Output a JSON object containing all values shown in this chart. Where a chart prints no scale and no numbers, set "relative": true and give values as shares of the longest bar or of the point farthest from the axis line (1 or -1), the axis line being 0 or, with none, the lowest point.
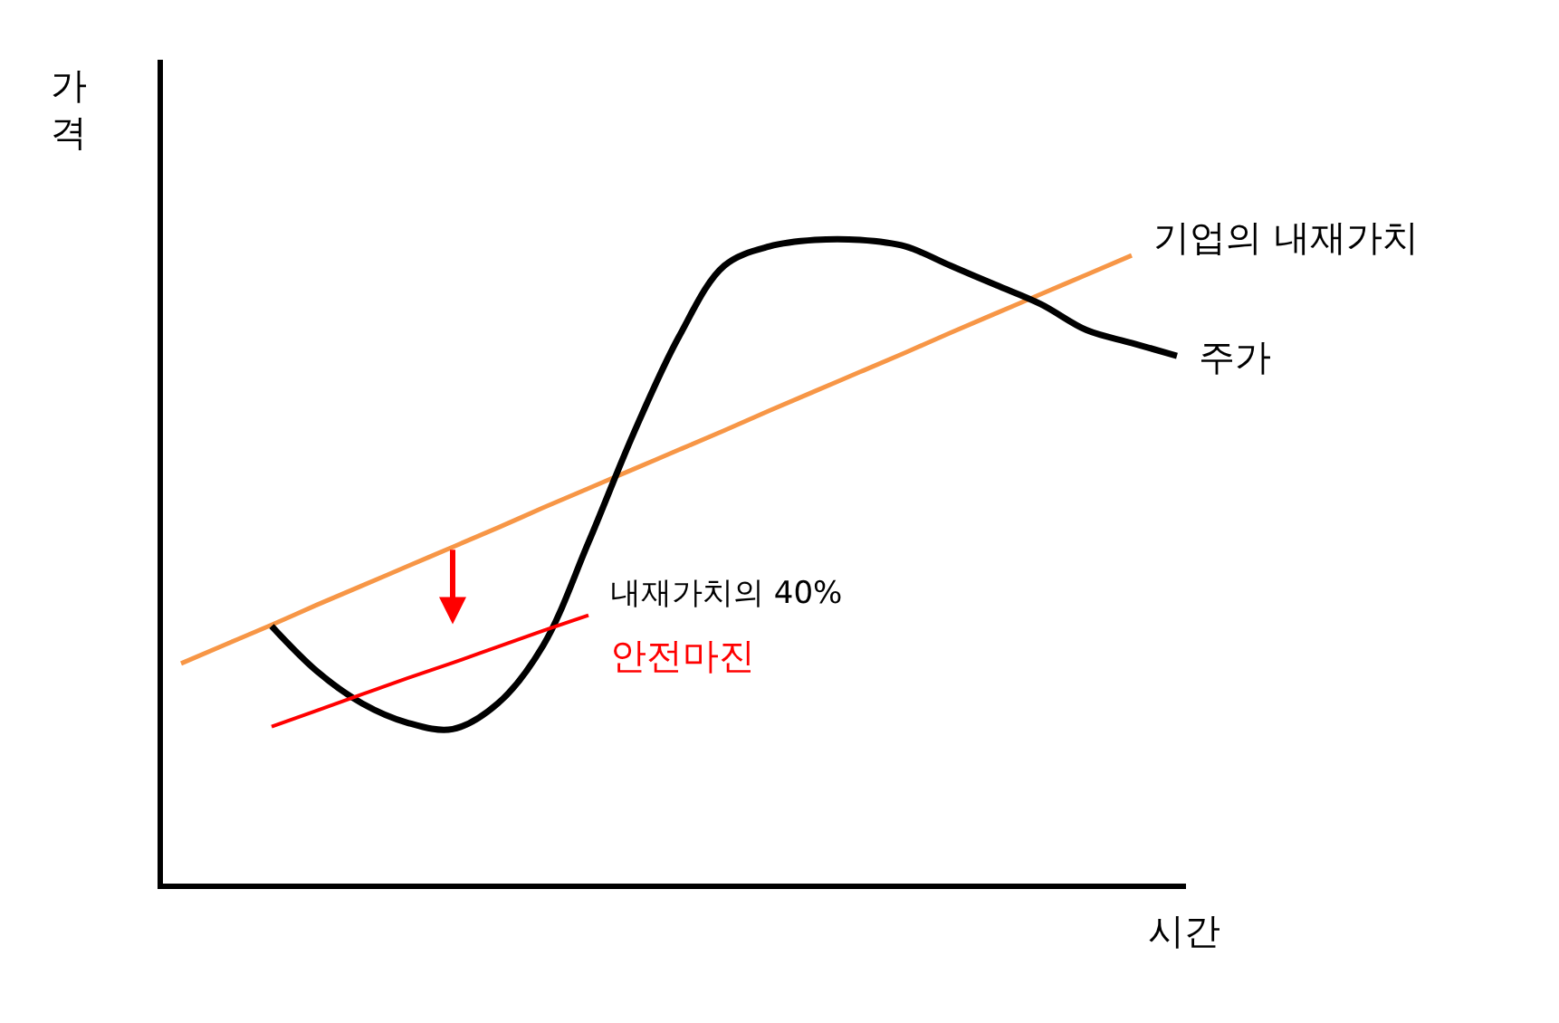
{
  "chart_data": {
    "type": "line",
    "relative": true,
    "xlabel": "시간",
    "ylabel": "가격",
    "categories": [
      null,
      null,
      null,
      null,
      null,
      null,
      null,
      null,
      null,
      null,
      null,
      null,
      null,
      null,
      null,
      null,
      null,
      null,
      null,
      null,
      null,
      null,
      null
    ],
    "series": [
      {
        "name": "기업의 내재가치",
        "color": "#f79646",
        "values": [
          0.342,
          0.372,
          0.402,
          0.433,
          0.463,
          0.493,
          0.523,
          0.553,
          0.584,
          0.614,
          0.644,
          0.674,
          0.704,
          0.735,
          0.765,
          0.795,
          0.825,
          0.856,
          0.886,
          0.916,
          0.946,
          0.976,
          null
        ]
      },
      {
        "name": "주가",
        "color": "#000000",
        "values": [
          null,
          null,
          0.4,
          0.33,
          0.28,
          0.25,
          0.24,
          0.28,
          0.37,
          0.53,
          0.7,
          0.85,
          0.96,
          0.99,
          1.0,
          1.0,
          0.99,
          0.96,
          0.93,
          0.9,
          0.86,
          0.84,
          0.82
        ]
      },
      {
        "name": "내재가치의 40%",
        "color": "#ff0000",
        "values": [
          null,
          null,
          0.244,
          0.269,
          0.294,
          0.319,
          0.343,
          0.368,
          0.393,
          0.417,
          null,
          null,
          null,
          null,
          null,
          null,
          null,
          null,
          null,
          null,
          null,
          null,
          null
        ]
      }
    ],
    "annotations": [
      "안전마진"
    ],
    "legend": false,
    "marker": "none",
    "line_style": "solid"
  }
}
